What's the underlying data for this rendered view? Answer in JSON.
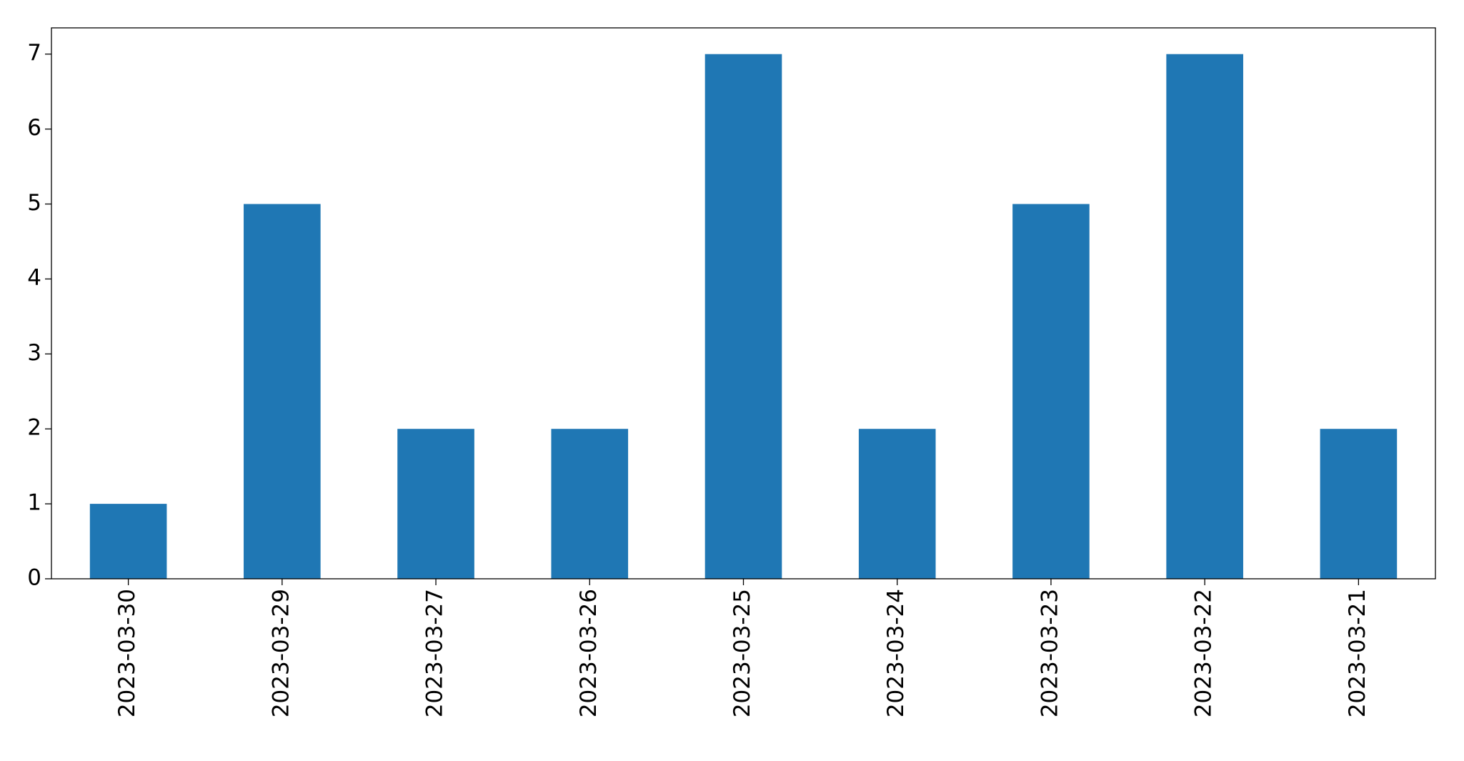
{
  "chart_data": {
    "type": "bar",
    "categories": [
      "2023-03-30",
      "2023-03-29",
      "2023-03-27",
      "2023-03-26",
      "2023-03-25",
      "2023-03-24",
      "2023-03-23",
      "2023-03-22",
      "2023-03-21"
    ],
    "values": [
      1,
      5,
      2,
      2,
      7,
      2,
      5,
      7,
      2
    ],
    "color": "#1f77b4",
    "ylim": [
      0,
      7.35
    ],
    "yticks": [
      0,
      1,
      2,
      3,
      4,
      5,
      6,
      7
    ],
    "grid": false
  }
}
